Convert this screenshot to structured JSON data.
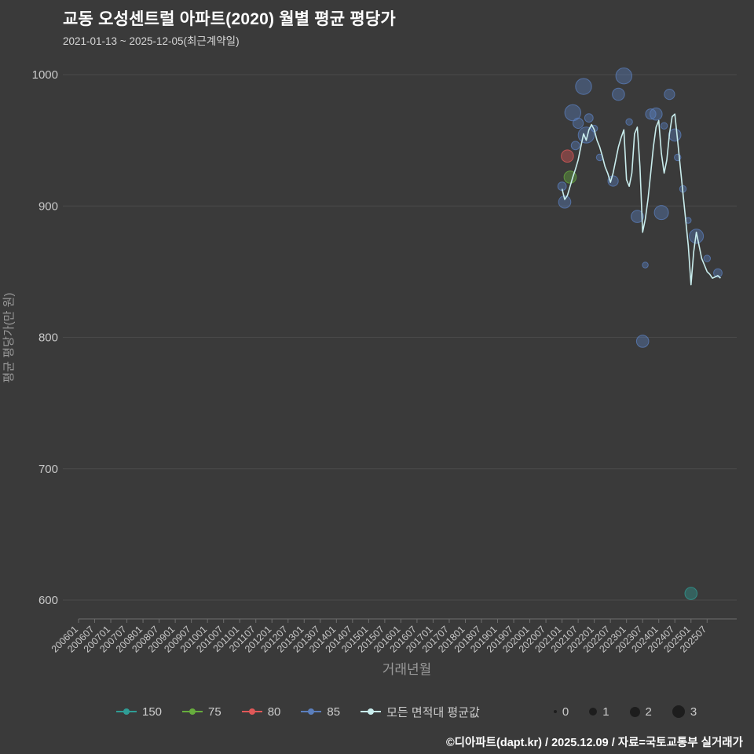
{
  "header": {
    "title": "교동 오성센트럴 아파트(2020) 월별 평균 평당가",
    "subtitle": "2021-01-13 ~ 2025-12-05(최근계약일)"
  },
  "footer": {
    "credit": "©디아파트(dapt.kr) / 2025.12.09 / 자료=국토교통부 실거래가"
  },
  "legend": {
    "series": [
      {
        "label": "150",
        "color": "#2f9e96"
      },
      {
        "label": "75",
        "color": "#67ad3d"
      },
      {
        "label": "80",
        "color": "#e05858"
      },
      {
        "label": "85",
        "color": "#5b7fbd"
      },
      {
        "label": "모든 면적대 평균값",
        "color": "#c9eded"
      }
    ],
    "sizes": [
      {
        "label": "0",
        "d": 4
      },
      {
        "label": "1",
        "d": 10
      },
      {
        "label": "2",
        "d": 13
      },
      {
        "label": "3",
        "d": 16
      }
    ]
  },
  "chart_data": {
    "type": "scatter",
    "title": "교동 오성센트럴 아파트(2020) 월별 평균 평당가",
    "xlabel": "거래년월",
    "ylabel": "평균 평당가(만 원)",
    "ylim": [
      580,
      1010
    ],
    "y_ticks": [
      600,
      700,
      800,
      900,
      1000
    ],
    "grid": "horizontal",
    "legend_position": "bottom",
    "x_ticks": [
      "200601",
      "200607",
      "200701",
      "200707",
      "200801",
      "200807",
      "200901",
      "200907",
      "201001",
      "201007",
      "201101",
      "201107",
      "201201",
      "201207",
      "201301",
      "201307",
      "201401",
      "201407",
      "201501",
      "201507",
      "201601",
      "201607",
      "201701",
      "201707",
      "201801",
      "201807",
      "201901",
      "201907",
      "202001",
      "202007",
      "202101",
      "202107",
      "202201",
      "202207",
      "202301",
      "202307",
      "202401",
      "202407",
      "202501",
      "202507"
    ],
    "line_series": {
      "name": "모든 면적대 평균값",
      "color": "#c9eded",
      "points": [
        [
          "202101",
          913
        ],
        [
          "202102",
          905
        ],
        [
          "202103",
          908
        ],
        [
          "202104",
          915
        ],
        [
          "202105",
          922
        ],
        [
          "202106",
          928
        ],
        [
          "202107",
          935
        ],
        [
          "202108",
          945
        ],
        [
          "202109",
          955
        ],
        [
          "202110",
          950
        ],
        [
          "202111",
          958
        ],
        [
          "202112",
          962
        ],
        [
          "202201",
          958
        ],
        [
          "202202",
          950
        ],
        [
          "202203",
          945
        ],
        [
          "202204",
          938
        ],
        [
          "202205",
          930
        ],
        [
          "202206",
          925
        ],
        [
          "202207",
          918
        ],
        [
          "202208",
          925
        ],
        [
          "202209",
          935
        ],
        [
          "202210",
          945
        ],
        [
          "202211",
          952
        ],
        [
          "202212",
          958
        ],
        [
          "202301",
          920
        ],
        [
          "202302",
          915
        ],
        [
          "202303",
          925
        ],
        [
          "202304",
          955
        ],
        [
          "202305",
          960
        ],
        [
          "202306",
          930
        ],
        [
          "202307",
          880
        ],
        [
          "202308",
          890
        ],
        [
          "202309",
          905
        ],
        [
          "202310",
          925
        ],
        [
          "202311",
          945
        ],
        [
          "202312",
          960
        ],
        [
          "202401",
          965
        ],
        [
          "202402",
          940
        ],
        [
          "202403",
          925
        ],
        [
          "202404",
          935
        ],
        [
          "202405",
          955
        ],
        [
          "202406",
          968
        ],
        [
          "202407",
          970
        ],
        [
          "202408",
          950
        ],
        [
          "202409",
          930
        ],
        [
          "202410",
          910
        ],
        [
          "202411",
          890
        ],
        [
          "202412",
          870
        ],
        [
          "202501",
          840
        ],
        [
          "202502",
          865
        ],
        [
          "202503",
          880
        ],
        [
          "202504",
          870
        ],
        [
          "202505",
          860
        ],
        [
          "202506",
          855
        ],
        [
          "202507",
          850
        ],
        [
          "202508",
          848
        ],
        [
          "202509",
          845
        ],
        [
          "202510",
          846
        ],
        [
          "202511",
          847
        ],
        [
          "202512",
          845
        ]
      ]
    },
    "scatter_series": [
      {
        "name": "150",
        "color": "#2f9e96",
        "points": [
          [
            "202501",
            605,
            2
          ]
        ]
      },
      {
        "name": "75",
        "color": "#67ad3d",
        "points": [
          [
            "202104",
            922,
            2
          ]
        ]
      },
      {
        "name": "80",
        "color": "#e05858",
        "points": [
          [
            "202103",
            938,
            2
          ]
        ]
      },
      {
        "name": "85",
        "color": "#5b7fbd",
        "points": [
          [
            "202101",
            915,
            1
          ],
          [
            "202102",
            903,
            2
          ],
          [
            "202105",
            971,
            3
          ],
          [
            "202106",
            946,
            1
          ],
          [
            "202107",
            963,
            1.5
          ],
          [
            "202109",
            991,
            3
          ],
          [
            "202110",
            954,
            3
          ],
          [
            "202111",
            967,
            1
          ],
          [
            "202201",
            959,
            0.5
          ],
          [
            "202203",
            937,
            0.5
          ],
          [
            "202208",
            919,
            1.5
          ],
          [
            "202210",
            985,
            2
          ],
          [
            "202212",
            999,
            3
          ],
          [
            "202302",
            964,
            0.5
          ],
          [
            "202305",
            892,
            2
          ],
          [
            "202307",
            797,
            2
          ],
          [
            "202308",
            855,
            0.3
          ],
          [
            "202310",
            970,
            1.5
          ],
          [
            "202312",
            970,
            2
          ],
          [
            "202402",
            895,
            2.5
          ],
          [
            "202403",
            961,
            0.5
          ],
          [
            "202405",
            985,
            1.5
          ],
          [
            "202407",
            954,
            2
          ],
          [
            "202408",
            937,
            0.5
          ],
          [
            "202410",
            913,
            0.5
          ],
          [
            "202412",
            889,
            0.3
          ],
          [
            "202503",
            877,
            2.5
          ],
          [
            "202507",
            860,
            0.5
          ],
          [
            "202511",
            849,
            1
          ]
        ]
      }
    ]
  }
}
